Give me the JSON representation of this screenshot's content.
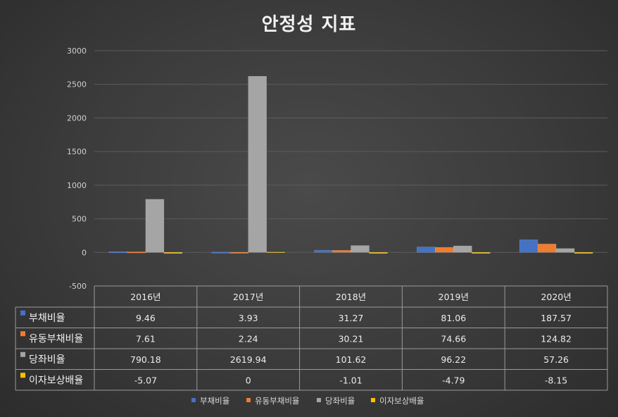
{
  "chart_data": {
    "type": "bar",
    "title": "안정성 지표",
    "categories": [
      "2016년",
      "2017년",
      "2018년",
      "2019년",
      "2020년"
    ],
    "series": [
      {
        "name": "부채비율",
        "color": "#4472c4",
        "values": [
          9.46,
          3.93,
          31.27,
          81.06,
          187.57
        ],
        "labels": [
          "9.46",
          "3.93",
          "31.27",
          "81.06",
          "187.57"
        ]
      },
      {
        "name": "유동부채비율",
        "color": "#ed7d31",
        "values": [
          7.61,
          2.24,
          30.21,
          74.66,
          124.82
        ],
        "labels": [
          "7.61",
          "2.24",
          "30.21",
          "74.66",
          "124.82"
        ]
      },
      {
        "name": "당좌비율",
        "color": "#a5a5a5",
        "values": [
          790.18,
          2619.94,
          101.62,
          96.22,
          57.26
        ],
        "labels": [
          "790.18",
          "2619.94",
          "101.62",
          "96.22",
          "57.26"
        ]
      },
      {
        "name": "이자보상배율",
        "color": "#ffc000",
        "values": [
          -5.07,
          0,
          -1.01,
          -4.79,
          -8.15
        ],
        "labels": [
          "-5.07",
          "0",
          "-1.01",
          "-4.79",
          "-8.15"
        ]
      }
    ],
    "y_ticks": [
      "3000",
      "2500",
      "2000",
      "1500",
      "1000",
      "500",
      "0",
      "-500"
    ],
    "ylim": [
      -500,
      3000
    ],
    "grid": true,
    "data_table": true,
    "legend_position": "bottom"
  }
}
